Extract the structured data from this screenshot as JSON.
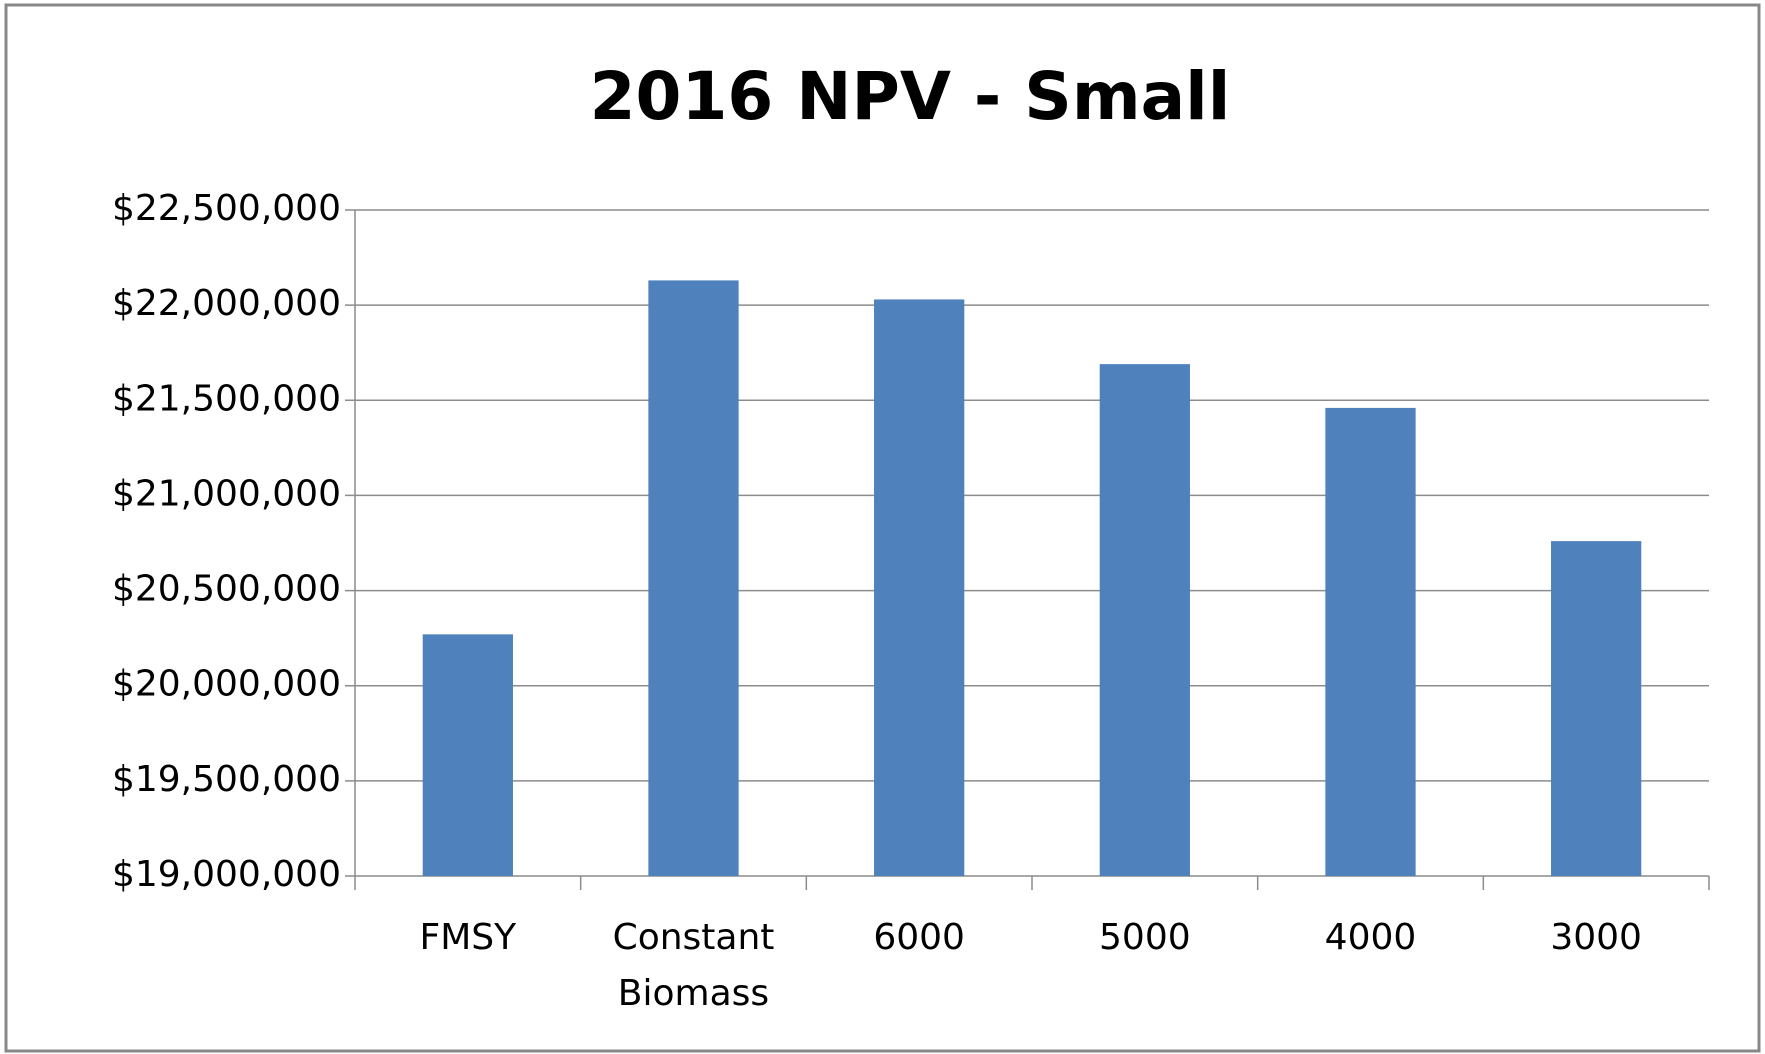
{
  "chart_data": {
    "type": "bar",
    "title": "2016 NPV - Small",
    "categories": [
      "FMSY",
      "Constant Biomass",
      "6000",
      "5000",
      "4000",
      "3000"
    ],
    "values": [
      20270000,
      22130000,
      22030000,
      21690000,
      21460000,
      20760000
    ],
    "color": "#4f81bd",
    "ylim": [
      19000000,
      22500000
    ],
    "yticks": [
      {
        "value": 19000000,
        "label": "$19,000,000"
      },
      {
        "value": 19500000,
        "label": "$19,500,000"
      },
      {
        "value": 20000000,
        "label": "$20,000,000"
      },
      {
        "value": 20500000,
        "label": "$20,500,000"
      },
      {
        "value": 21000000,
        "label": "$21,000,000"
      },
      {
        "value": 21500000,
        "label": "$21,500,000"
      },
      {
        "value": 22000000,
        "label": "$22,000,000"
      },
      {
        "value": 22500000,
        "label": "$22,500,000"
      }
    ],
    "grid": true
  }
}
